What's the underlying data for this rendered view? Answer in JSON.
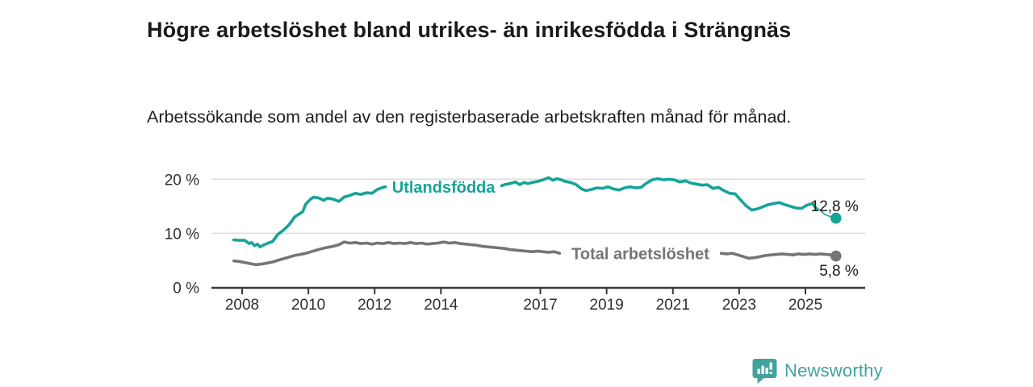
{
  "header": {
    "title": "Högre arbetslöshet bland utrikes- än inrikesfödda i Strängnäs",
    "subtitle": "Arbetssökande som andel av den registerbaserade arbetskraften månad för månad."
  },
  "footer": {
    "brand": "Newsworthy",
    "logo_icon": "bar-chart-speech-bubble-icon",
    "brand_color": "#43a29d"
  },
  "colors": {
    "series_foreign_born": "#16a398",
    "series_total": "#757578",
    "gridline": "#dddddd",
    "axis": "#3a3a3a",
    "text_dark": "#1a1a1a",
    "tick_text": "#2e2e2e"
  },
  "chart_data": {
    "type": "line",
    "title": "Högre arbetslöshet bland utrikes- än inrikesfödda i Strängnäs",
    "subtitle": "Arbetssökande som andel av den registerbaserade arbetskraften månad för månad.",
    "unit": "%",
    "grid": "horizontal",
    "legend_position": "inline-labels",
    "x_axis": {
      "range": [
        2007.1,
        2026.8
      ],
      "ticks": [
        {
          "value": 2008,
          "label": "2008"
        },
        {
          "value": 2010,
          "label": "2010"
        },
        {
          "value": 2012,
          "label": "2012"
        },
        {
          "value": 2014,
          "label": "2014"
        },
        {
          "value": 2017,
          "label": "2017"
        },
        {
          "value": 2019,
          "label": "2019"
        },
        {
          "value": 2021,
          "label": "2021"
        },
        {
          "value": 2023,
          "label": "2023"
        },
        {
          "value": 2025,
          "label": "2025"
        }
      ]
    },
    "y_axis": {
      "range": [
        0,
        22
      ],
      "ticks": [
        {
          "value": 0,
          "label": "0 %"
        },
        {
          "value": 10,
          "label": "10 %"
        },
        {
          "value": 20,
          "label": "20 %"
        }
      ]
    },
    "series": [
      {
        "name": "Utlandsfödda",
        "color": "#16a398",
        "end_value": 12.8,
        "end_label": "12,8 %",
        "end_label_pos": "above",
        "label_gap_x": [
          2012.33,
          2015.83
        ],
        "thin_from_x": 2025.33,
        "points": [
          [
            2007.75,
            8.8
          ],
          [
            2007.92,
            8.7
          ],
          [
            2008.08,
            8.7
          ],
          [
            2008.21,
            8.1
          ],
          [
            2008.29,
            8.3
          ],
          [
            2008.38,
            7.7
          ],
          [
            2008.46,
            8.0
          ],
          [
            2008.54,
            7.5
          ],
          [
            2008.67,
            7.9
          ],
          [
            2008.79,
            8.2
          ],
          [
            2008.92,
            8.5
          ],
          [
            2009.08,
            9.8
          ],
          [
            2009.25,
            10.6
          ],
          [
            2009.42,
            11.6
          ],
          [
            2009.58,
            13.0
          ],
          [
            2009.75,
            13.7
          ],
          [
            2009.83,
            14.0
          ],
          [
            2009.92,
            15.4
          ],
          [
            2010.0,
            15.9
          ],
          [
            2010.08,
            16.4
          ],
          [
            2010.17,
            16.7
          ],
          [
            2010.33,
            16.5
          ],
          [
            2010.46,
            16.1
          ],
          [
            2010.58,
            16.5
          ],
          [
            2010.75,
            16.3
          ],
          [
            2010.92,
            15.9
          ],
          [
            2011.08,
            16.7
          ],
          [
            2011.25,
            17.0
          ],
          [
            2011.42,
            17.4
          ],
          [
            2011.58,
            17.2
          ],
          [
            2011.75,
            17.5
          ],
          [
            2011.92,
            17.4
          ],
          [
            2012.08,
            18.1
          ],
          [
            2012.25,
            18.5
          ],
          [
            2012.33,
            18.6
          ],
          [
            2015.83,
            18.8
          ],
          [
            2015.92,
            19.0
          ],
          [
            2016.08,
            19.2
          ],
          [
            2016.25,
            19.5
          ],
          [
            2016.38,
            19.0
          ],
          [
            2016.5,
            19.4
          ],
          [
            2016.63,
            19.2
          ],
          [
            2016.75,
            19.4
          ],
          [
            2016.92,
            19.6
          ],
          [
            2017.08,
            19.9
          ],
          [
            2017.25,
            20.3
          ],
          [
            2017.38,
            19.8
          ],
          [
            2017.5,
            20.1
          ],
          [
            2017.63,
            19.9
          ],
          [
            2017.75,
            19.6
          ],
          [
            2017.92,
            19.4
          ],
          [
            2018.08,
            19.0
          ],
          [
            2018.25,
            18.2
          ],
          [
            2018.38,
            17.9
          ],
          [
            2018.54,
            18.1
          ],
          [
            2018.71,
            18.4
          ],
          [
            2018.88,
            18.3
          ],
          [
            2019.04,
            18.6
          ],
          [
            2019.21,
            18.2
          ],
          [
            2019.38,
            18.0
          ],
          [
            2019.54,
            18.4
          ],
          [
            2019.71,
            18.6
          ],
          [
            2019.88,
            18.4
          ],
          [
            2020.04,
            18.5
          ],
          [
            2020.21,
            19.3
          ],
          [
            2020.38,
            19.9
          ],
          [
            2020.54,
            20.1
          ],
          [
            2020.71,
            19.9
          ],
          [
            2020.88,
            20.0
          ],
          [
            2021.04,
            19.9
          ],
          [
            2021.21,
            19.5
          ],
          [
            2021.38,
            19.7
          ],
          [
            2021.54,
            19.3
          ],
          [
            2021.71,
            19.1
          ],
          [
            2021.88,
            18.9
          ],
          [
            2022.04,
            19.0
          ],
          [
            2022.21,
            18.3
          ],
          [
            2022.38,
            18.5
          ],
          [
            2022.54,
            17.9
          ],
          [
            2022.71,
            17.4
          ],
          [
            2022.88,
            17.3
          ],
          [
            2023.04,
            16.2
          ],
          [
            2023.21,
            15.1
          ],
          [
            2023.38,
            14.3
          ],
          [
            2023.54,
            14.5
          ],
          [
            2023.71,
            14.9
          ],
          [
            2023.88,
            15.3
          ],
          [
            2024.04,
            15.5
          ],
          [
            2024.21,
            15.7
          ],
          [
            2024.38,
            15.3
          ],
          [
            2024.54,
            15.0
          ],
          [
            2024.71,
            14.7
          ],
          [
            2024.88,
            14.6
          ],
          [
            2025.04,
            15.2
          ],
          [
            2025.21,
            15.5
          ],
          [
            2025.33,
            14.6
          ],
          [
            2025.42,
            14.4
          ],
          [
            2025.58,
            13.5
          ],
          [
            2025.75,
            13.1
          ],
          [
            2025.92,
            12.8
          ]
        ]
      },
      {
        "name": "Total arbetslöshet",
        "color": "#757578",
        "end_value": 5.8,
        "end_label": "5,8 %",
        "end_label_pos": "below",
        "label_gap_x": [
          2017.58,
          2022.46
        ],
        "thin_from_x": null,
        "points": [
          [
            2007.75,
            4.9
          ],
          [
            2007.92,
            4.8
          ],
          [
            2008.08,
            4.6
          ],
          [
            2008.25,
            4.4
          ],
          [
            2008.42,
            4.2
          ],
          [
            2008.58,
            4.3
          ],
          [
            2008.75,
            4.5
          ],
          [
            2008.92,
            4.7
          ],
          [
            2009.08,
            5.0
          ],
          [
            2009.25,
            5.3
          ],
          [
            2009.42,
            5.6
          ],
          [
            2009.58,
            5.9
          ],
          [
            2009.75,
            6.1
          ],
          [
            2009.92,
            6.3
          ],
          [
            2010.08,
            6.6
          ],
          [
            2010.25,
            6.9
          ],
          [
            2010.42,
            7.2
          ],
          [
            2010.58,
            7.4
          ],
          [
            2010.75,
            7.6
          ],
          [
            2010.92,
            7.9
          ],
          [
            2011.08,
            8.4
          ],
          [
            2011.25,
            8.2
          ],
          [
            2011.42,
            8.3
          ],
          [
            2011.58,
            8.1
          ],
          [
            2011.75,
            8.2
          ],
          [
            2011.92,
            8.0
          ],
          [
            2012.08,
            8.2
          ],
          [
            2012.25,
            8.1
          ],
          [
            2012.42,
            8.3
          ],
          [
            2012.58,
            8.1
          ],
          [
            2012.75,
            8.2
          ],
          [
            2012.92,
            8.1
          ],
          [
            2013.08,
            8.3
          ],
          [
            2013.25,
            8.1
          ],
          [
            2013.42,
            8.2
          ],
          [
            2013.58,
            8.0
          ],
          [
            2013.75,
            8.1
          ],
          [
            2013.92,
            8.2
          ],
          [
            2014.08,
            8.4
          ],
          [
            2014.25,
            8.2
          ],
          [
            2014.42,
            8.3
          ],
          [
            2014.58,
            8.1
          ],
          [
            2014.75,
            8.0
          ],
          [
            2014.92,
            7.9
          ],
          [
            2015.08,
            7.8
          ],
          [
            2015.25,
            7.6
          ],
          [
            2015.42,
            7.5
          ],
          [
            2015.58,
            7.4
          ],
          [
            2015.75,
            7.3
          ],
          [
            2015.92,
            7.2
          ],
          [
            2016.08,
            7.0
          ],
          [
            2016.25,
            6.9
          ],
          [
            2016.42,
            6.8
          ],
          [
            2016.58,
            6.7
          ],
          [
            2016.75,
            6.6
          ],
          [
            2016.92,
            6.7
          ],
          [
            2017.08,
            6.6
          ],
          [
            2017.25,
            6.5
          ],
          [
            2017.42,
            6.6
          ],
          [
            2017.58,
            6.3
          ],
          [
            2022.46,
            6.3
          ],
          [
            2022.63,
            6.2
          ],
          [
            2022.79,
            6.3
          ],
          [
            2022.96,
            6.0
          ],
          [
            2023.13,
            5.7
          ],
          [
            2023.29,
            5.4
          ],
          [
            2023.46,
            5.5
          ],
          [
            2023.63,
            5.7
          ],
          [
            2023.79,
            5.9
          ],
          [
            2023.96,
            6.0
          ],
          [
            2024.13,
            6.1
          ],
          [
            2024.29,
            6.2
          ],
          [
            2024.46,
            6.1
          ],
          [
            2024.63,
            6.0
          ],
          [
            2024.79,
            6.2
          ],
          [
            2024.96,
            6.1
          ],
          [
            2025.13,
            6.2
          ],
          [
            2025.29,
            6.1
          ],
          [
            2025.46,
            6.2
          ],
          [
            2025.63,
            6.1
          ],
          [
            2025.79,
            6.0
          ],
          [
            2025.92,
            5.8
          ]
        ]
      }
    ]
  }
}
